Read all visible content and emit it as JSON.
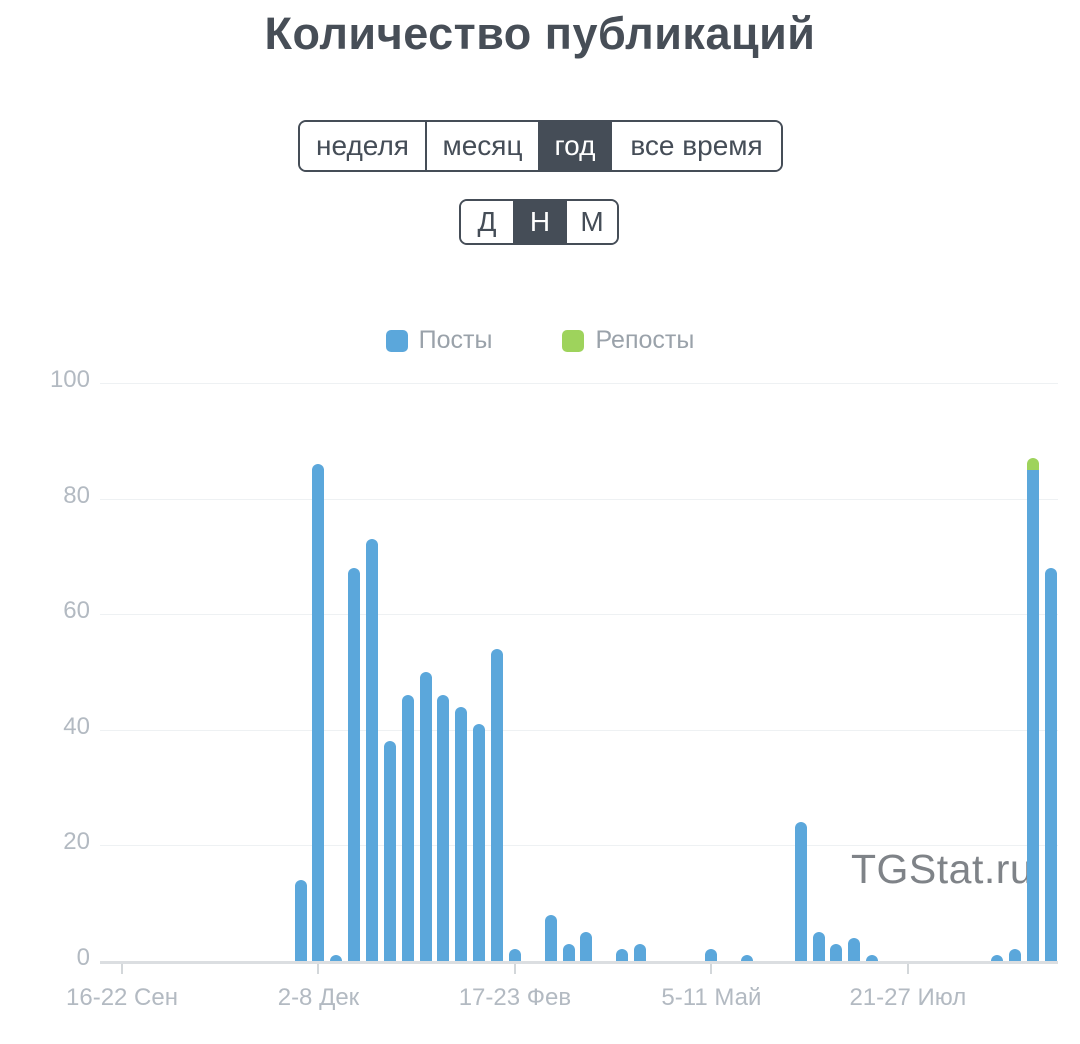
{
  "page": {
    "title": "Количество публикаций"
  },
  "controls": {
    "period": {
      "options": [
        "неделя",
        "месяц",
        "год",
        "все время"
      ],
      "selected": "год"
    },
    "granularity": {
      "options": [
        "Д",
        "Н",
        "М"
      ],
      "selected": "Н"
    }
  },
  "legend": {
    "items": [
      {
        "label": "Посты",
        "color": "#5ba7db"
      },
      {
        "label": "Репосты",
        "color": "#9ed35c"
      }
    ]
  },
  "watermark": "TGStat.ru",
  "colors": {
    "posts_bar": "#5ba7db",
    "reposts_bar": "#9ed35c",
    "selected_button_bg": "#454d57",
    "title_text": "#474e57",
    "axis_text": "#b3bac2",
    "legend_text": "#9aa2aa"
  },
  "chart_data": {
    "type": "bar",
    "stacked": true,
    "title": "Количество публикаций",
    "x_unit": "week",
    "n_slots": 53,
    "ylim": [
      0,
      100
    ],
    "yticks": [
      0,
      20,
      40,
      60,
      80,
      100
    ],
    "grid": true,
    "legend_position": "top",
    "xticks": [
      {
        "slot": 0,
        "label": "16-22 Сен"
      },
      {
        "slot": 11,
        "label": "2-8 Дек"
      },
      {
        "slot": 22,
        "label": "17-23 Фев"
      },
      {
        "slot": 33,
        "label": "5-11 Май"
      },
      {
        "slot": 44,
        "label": "21-27 Июл"
      }
    ],
    "series": [
      {
        "name": "Посты",
        "color": "#5ba7db",
        "values": [
          0,
          0,
          0,
          0,
          0,
          0,
          0,
          0,
          0,
          0,
          14,
          86,
          1,
          68,
          73,
          38,
          46,
          50,
          46,
          44,
          41,
          54,
          2,
          0,
          8,
          3,
          5,
          0,
          2,
          3,
          0,
          0,
          0,
          2,
          0,
          1,
          0,
          0,
          24,
          5,
          3,
          4,
          1,
          0,
          0,
          0,
          0,
          0,
          0,
          1,
          2,
          85,
          68
        ]
      },
      {
        "name": "Репосты",
        "color": "#9ed35c",
        "values": [
          0,
          0,
          0,
          0,
          0,
          0,
          0,
          0,
          0,
          0,
          0,
          0,
          0,
          0,
          0,
          0,
          0,
          0,
          0,
          0,
          0,
          0,
          0,
          0,
          0,
          0,
          0,
          0,
          0,
          0,
          0,
          0,
          0,
          0,
          0,
          0,
          0,
          0,
          0,
          0,
          0,
          0,
          0,
          0,
          0,
          0,
          0,
          0,
          0,
          0,
          0,
          2,
          0
        ]
      }
    ]
  }
}
